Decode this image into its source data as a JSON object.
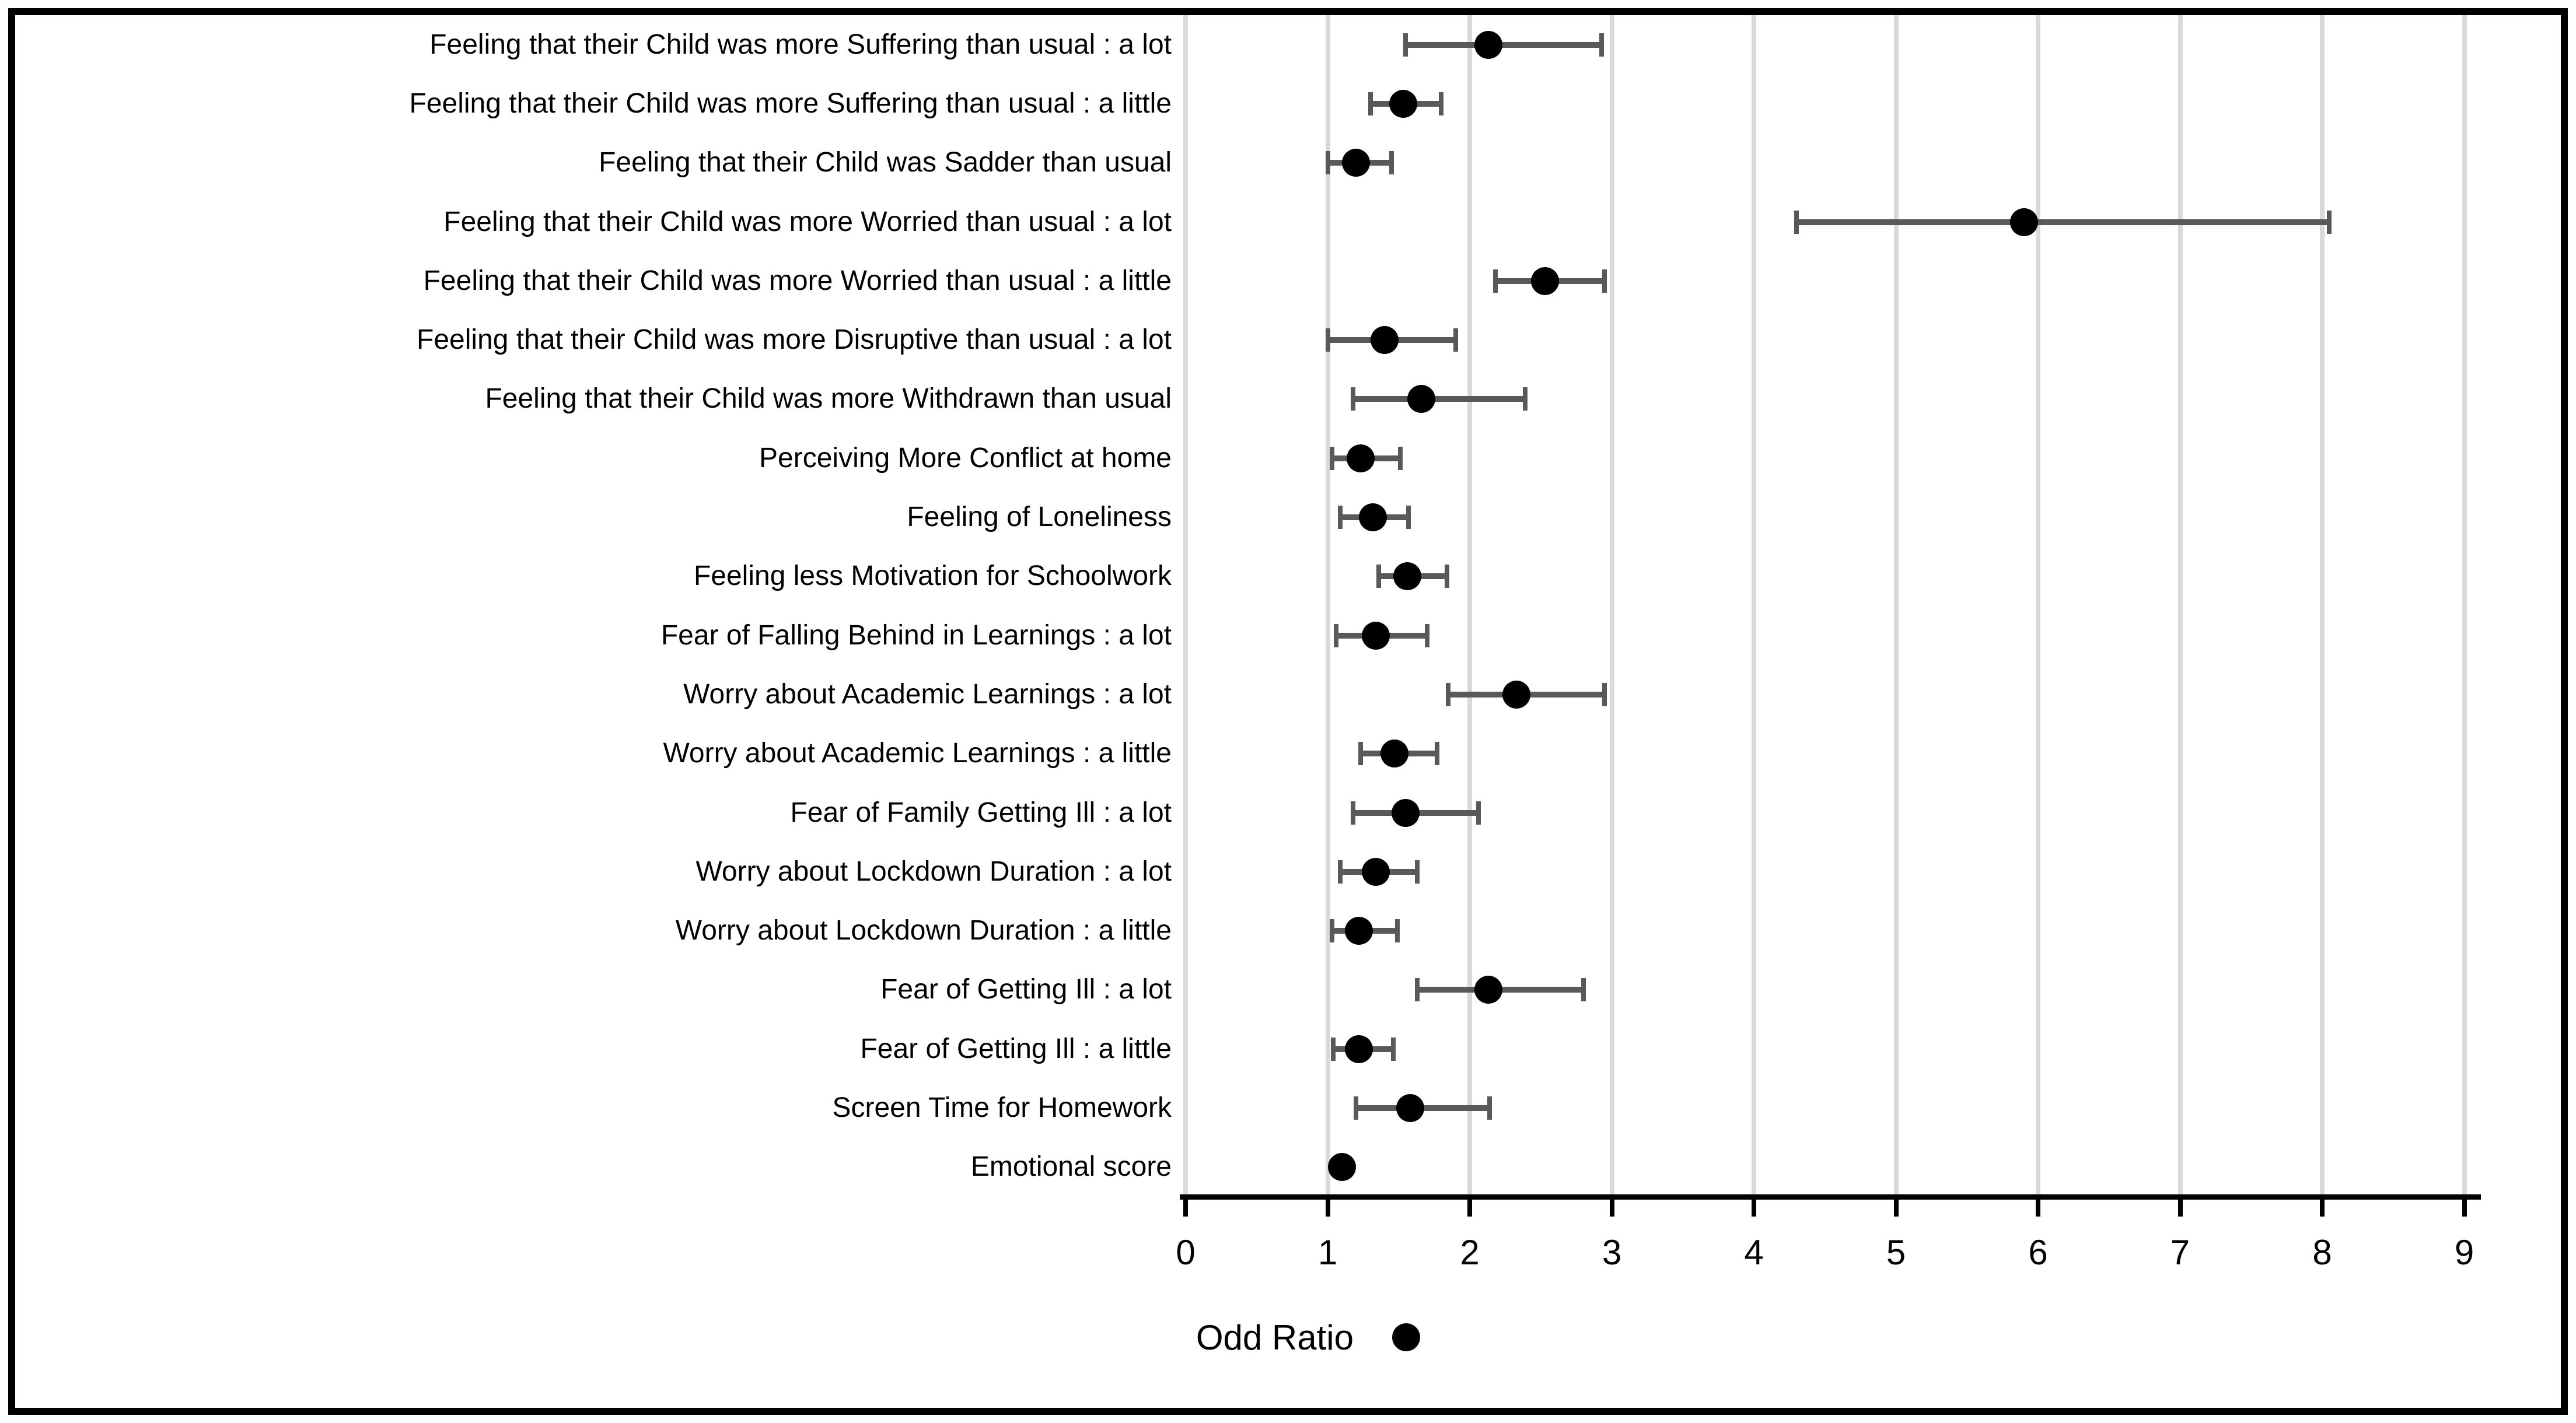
{
  "colors": {
    "background": "#FFFFFF",
    "border": "#000000",
    "axis": "#000000",
    "gridline": "#D9D9D9",
    "error_bar": "#595959",
    "marker": "#000000",
    "text": "#000000"
  },
  "legend": {
    "label": "Odd Ratio",
    "marker": "filled-circle"
  },
  "chart_data": {
    "type": "scatter",
    "variant": "forest-plot",
    "title": "",
    "xlabel": "",
    "ylabel": "",
    "xlim": [
      0,
      9
    ],
    "x_ticks": [
      "0",
      "1",
      "2",
      "3",
      "4",
      "5",
      "6",
      "7",
      "8",
      "9"
    ],
    "grid": true,
    "legend_label": "Odd Ratio",
    "legend_position": "bottom-left",
    "rows": [
      {
        "label": "Feeling that their Child was more Suffering than usual : a lot",
        "or": 2.13,
        "ci_low": 1.55,
        "ci_high": 2.93
      },
      {
        "label": "Feeling that their Child was more Suffering than usual : a little",
        "or": 1.53,
        "ci_low": 1.3,
        "ci_high": 1.8
      },
      {
        "label": "Feeling that their Child was Sadder than usual",
        "or": 1.2,
        "ci_low": 1.0,
        "ci_high": 1.45
      },
      {
        "label": "Feeling that their Child was more Worried than usual : a lot",
        "or": 5.9,
        "ci_low": 4.3,
        "ci_high": 8.05
      },
      {
        "label": "Feeling that their Child was more Worried than usual : a little",
        "or": 2.53,
        "ci_low": 2.18,
        "ci_high": 2.95
      },
      {
        "label": "Feeling that their Child was more Disruptive than usual : a lot",
        "or": 1.4,
        "ci_low": 1.0,
        "ci_high": 1.9
      },
      {
        "label": "Feeling that their Child was more Withdrawn than usual",
        "or": 1.66,
        "ci_low": 1.18,
        "ci_high": 2.39
      },
      {
        "label": "Perceiving More Conflict at home",
        "or": 1.23,
        "ci_low": 1.03,
        "ci_high": 1.51
      },
      {
        "label": "Feeling of Loneliness",
        "or": 1.32,
        "ci_low": 1.09,
        "ci_high": 1.57
      },
      {
        "label": "Feeling less Motivation for Schoolwork",
        "or": 1.56,
        "ci_low": 1.36,
        "ci_high": 1.84
      },
      {
        "label": "Fear of Falling Behind in Learnings : a lot",
        "or": 1.34,
        "ci_low": 1.06,
        "ci_high": 1.7
      },
      {
        "label": "Worry about Academic Learnings : a lot",
        "or": 2.33,
        "ci_low": 1.85,
        "ci_high": 2.95
      },
      {
        "label": "Worry about Academic Learnings : a little",
        "or": 1.47,
        "ci_low": 1.23,
        "ci_high": 1.77
      },
      {
        "label": "Fear of Family Getting Ill : a lot",
        "or": 1.55,
        "ci_low": 1.18,
        "ci_high": 2.06
      },
      {
        "label": "Worry about Lockdown Duration : a lot",
        "or": 1.34,
        "ci_low": 1.09,
        "ci_high": 1.63
      },
      {
        "label": "Worry about Lockdown Duration : a little",
        "or": 1.22,
        "ci_low": 1.03,
        "ci_high": 1.49
      },
      {
        "label": "Fear of Getting Ill : a lot",
        "or": 2.13,
        "ci_low": 1.63,
        "ci_high": 2.8
      },
      {
        "label": "Fear of Getting Ill : a little",
        "or": 1.22,
        "ci_low": 1.04,
        "ci_high": 1.46
      },
      {
        "label": "Screen Time for Homework",
        "or": 1.58,
        "ci_low": 1.2,
        "ci_high": 2.14
      },
      {
        "label": "Emotional score",
        "or": 1.1,
        "ci_low": null,
        "ci_high": null
      }
    ]
  }
}
